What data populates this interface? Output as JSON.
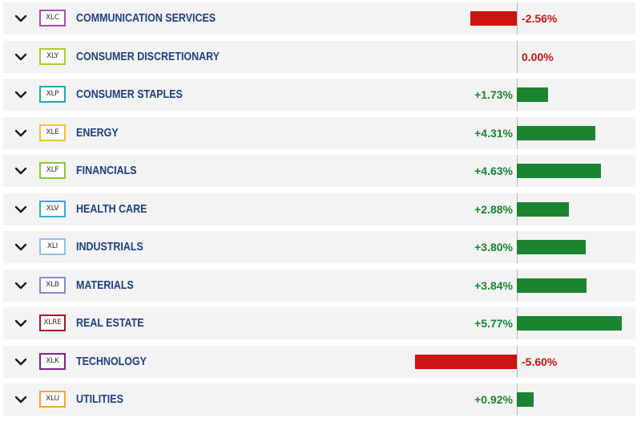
{
  "colors": {
    "positive": "#1a8431",
    "negative": "#cc1410",
    "name_text": "#1e3f80",
    "row_background": "#f3f3f3"
  },
  "icons": {
    "expand": "chevron-down-icon"
  },
  "sectors": [
    {
      "ticker": "XLC",
      "name": "COMMUNICATION SERVICES",
      "change_text": "-2.56%",
      "change": -2.56,
      "ticker_color": "#a34fb5"
    },
    {
      "ticker": "XLY",
      "name": "CONSUMER DISCRETIONARY",
      "change_text": "0.00%",
      "change": 0.0,
      "ticker_color": "#b5c433"
    },
    {
      "ticker": "XLP",
      "name": "CONSUMER STAPLES",
      "change_text": "+1.73%",
      "change": 1.73,
      "ticker_color": "#2aa3b5"
    },
    {
      "ticker": "XLE",
      "name": "ENERGY",
      "change_text": "+4.31%",
      "change": 4.31,
      "ticker_color": "#f0c331"
    },
    {
      "ticker": "XLF",
      "name": "FINANCIALS",
      "change_text": "+4.63%",
      "change": 4.63,
      "ticker_color": "#8cc63f"
    },
    {
      "ticker": "XLV",
      "name": "HEALTH CARE",
      "change_text": "+2.88%",
      "change": 2.88,
      "ticker_color": "#38a9d8"
    },
    {
      "ticker": "XLI",
      "name": "INDUSTRIALS",
      "change_text": "+3.80%",
      "change": 3.8,
      "ticker_color": "#8cc3e8"
    },
    {
      "ticker": "XLB",
      "name": "MATERIALS",
      "change_text": "+3.84%",
      "change": 3.84,
      "ticker_color": "#7f8fc4"
    },
    {
      "ticker": "XLRE",
      "name": "REAL ESTATE",
      "change_text": "+5.77%",
      "change": 5.77,
      "ticker_color": "#9c1d24"
    },
    {
      "ticker": "XLK",
      "name": "TECHNOLOGY",
      "change_text": "-5.60%",
      "change": -5.6,
      "ticker_color": "#7d2386"
    },
    {
      "ticker": "XLU",
      "name": "UTILITIES",
      "change_text": "+0.92%",
      "change": 0.92,
      "ticker_color": "#f4a23b"
    }
  ]
}
